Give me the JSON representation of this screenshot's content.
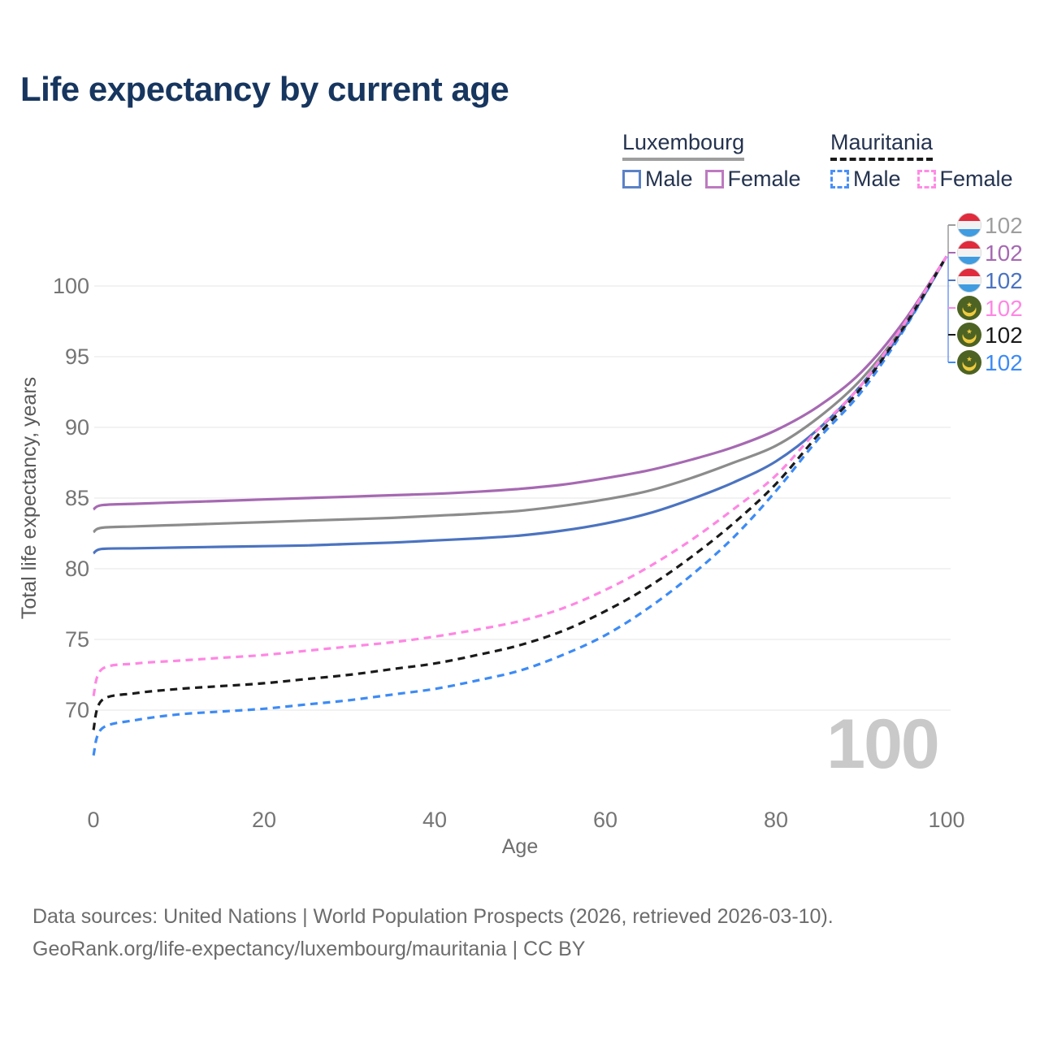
{
  "title": "Life expectancy by current age",
  "legend": {
    "groups": [
      {
        "name": "Luxembourg",
        "line_style": "solid",
        "underline_color": "#9e9e9e",
        "items": [
          {
            "label": "Male",
            "swatch_color": "#5b82c6",
            "style": "solid"
          },
          {
            "label": "Female",
            "swatch_color": "#bd7ac0",
            "style": "solid"
          }
        ]
      },
      {
        "name": "Mauritania",
        "line_style": "dashed",
        "underline_color": "#1a1a1a",
        "items": [
          {
            "label": "Male",
            "swatch_color": "#4a90f7",
            "style": "dashed"
          },
          {
            "label": "Female",
            "swatch_color": "#ff8ce4",
            "style": "dashed"
          }
        ]
      }
    ]
  },
  "chart_data": {
    "type": "line",
    "title": "Life expectancy by current age",
    "xlabel": "Age",
    "ylabel": "Total life expectancy, years",
    "xlim": [
      0,
      100
    ],
    "ylim": [
      66,
      103.5
    ],
    "xticks": [
      0,
      20,
      40,
      60,
      80,
      100
    ],
    "yticks": [
      70,
      75,
      80,
      85,
      90,
      95,
      100
    ],
    "grid": "horizontal",
    "legend_position": "top-right",
    "watermark": "100",
    "x": [
      0,
      1,
      5,
      10,
      15,
      20,
      25,
      30,
      35,
      40,
      45,
      50,
      55,
      60,
      65,
      70,
      75,
      80,
      85,
      90,
      95,
      100
    ],
    "series": [
      {
        "name": "Luxembourg Male",
        "country": "Luxembourg",
        "sex": "male",
        "style": "solid",
        "color": "#4b73c0",
        "values": [
          81.1,
          81.4,
          81.45,
          81.5,
          81.55,
          81.6,
          81.65,
          81.75,
          81.85,
          82.0,
          82.15,
          82.35,
          82.7,
          83.2,
          83.9,
          84.9,
          86.1,
          87.6,
          89.9,
          93.0,
          97.0,
          102.1
        ]
      },
      {
        "name": "Luxembourg Both sexes",
        "country": "Luxembourg",
        "sex": "both",
        "style": "solid",
        "color": "#8c8c8c",
        "values": [
          82.6,
          82.9,
          83.0,
          83.1,
          83.2,
          83.3,
          83.4,
          83.5,
          83.6,
          83.75,
          83.9,
          84.1,
          84.45,
          84.9,
          85.5,
          86.4,
          87.5,
          88.7,
          90.7,
          93.4,
          97.2,
          102.1
        ]
      },
      {
        "name": "Luxembourg Female",
        "country": "Luxembourg",
        "sex": "female",
        "style": "solid",
        "color": "#a669b2",
        "values": [
          84.2,
          84.5,
          84.6,
          84.7,
          84.8,
          84.9,
          85.0,
          85.1,
          85.2,
          85.3,
          85.45,
          85.65,
          85.95,
          86.4,
          86.95,
          87.7,
          88.6,
          89.8,
          91.5,
          93.9,
          97.5,
          102.1
        ]
      },
      {
        "name": "Mauritania Male",
        "country": "Mauritania",
        "sex": "male",
        "style": "dashed",
        "color": "#3d8bf5",
        "values": [
          66.8,
          68.7,
          69.3,
          69.7,
          69.9,
          70.1,
          70.4,
          70.7,
          71.1,
          71.5,
          72.1,
          72.8,
          73.9,
          75.3,
          77.2,
          79.5,
          82.2,
          85.5,
          89.2,
          92.5,
          96.9,
          102.1
        ]
      },
      {
        "name": "Mauritania Both sexes",
        "country": "Mauritania",
        "sex": "both",
        "style": "dashed",
        "color": "#1a1a1a",
        "values": [
          68.6,
          70.7,
          71.2,
          71.5,
          71.7,
          71.9,
          72.2,
          72.5,
          72.9,
          73.3,
          73.9,
          74.6,
          75.6,
          77.0,
          78.7,
          80.8,
          83.2,
          86.0,
          89.5,
          92.8,
          97.1,
          102.1
        ]
      },
      {
        "name": "Mauritania Female",
        "country": "Mauritania",
        "sex": "female",
        "style": "dashed",
        "color": "#ff87e3",
        "values": [
          71.0,
          72.9,
          73.3,
          73.5,
          73.7,
          73.9,
          74.2,
          74.5,
          74.8,
          75.2,
          75.7,
          76.3,
          77.2,
          78.5,
          80.1,
          82.0,
          84.2,
          86.6,
          89.9,
          93.0,
          97.3,
          102.1
        ]
      }
    ],
    "end_labels": [
      {
        "flag": "lu",
        "text": "102",
        "color": "#9e9e9e",
        "series": "Luxembourg Both sexes"
      },
      {
        "flag": "lu",
        "text": "102",
        "color": "#a669b2",
        "series": "Luxembourg Female"
      },
      {
        "flag": "lu",
        "text": "102",
        "color": "#4b73c0",
        "series": "Luxembourg Male"
      },
      {
        "flag": "mr",
        "text": "102",
        "color": "#ff87e3",
        "series": "Mauritania Female"
      },
      {
        "flag": "mr",
        "text": "102",
        "color": "#1a1a1a",
        "series": "Mauritania Both sexes"
      },
      {
        "flag": "mr",
        "text": "102",
        "color": "#3d8bf5",
        "series": "Mauritania Male"
      }
    ]
  },
  "footer": {
    "line1": "Data sources: United Nations | World Population Prospects (2026, retrieved 2026-03-10).",
    "line2": "GeoRank.org/life-expectancy/luxembourg/mauritania | CC BY"
  }
}
